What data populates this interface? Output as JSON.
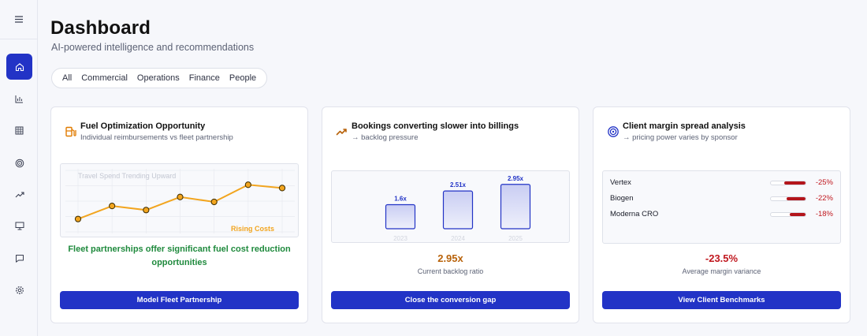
{
  "header": {
    "title": "Dashboard",
    "subtitle": "AI-powered intelligence and recommendations"
  },
  "sidebar": {
    "items": [
      {
        "icon": "home-icon",
        "active": true
      },
      {
        "icon": "bar-chart-icon",
        "active": false
      },
      {
        "icon": "table-icon",
        "active": false
      },
      {
        "icon": "target-icon",
        "active": false
      },
      {
        "icon": "trending-icon",
        "active": false
      },
      {
        "icon": "presentation-icon",
        "active": false
      },
      {
        "icon": "chat-icon",
        "active": false
      },
      {
        "icon": "settings-icon",
        "active": false
      }
    ]
  },
  "filters": [
    "All",
    "Commercial",
    "Operations",
    "Finance",
    "People"
  ],
  "cards": {
    "fuel": {
      "title": "Fuel Optimization Opportunity",
      "subtitle": "Individual reimbursements vs fleet partnership",
      "insight": "Fleet partnerships offer significant fuel cost reduction opportunities",
      "button": "Model Fleet Partnership",
      "accent": "#e07b00"
    },
    "bookings": {
      "title": "Bookings converting slower into billings",
      "subtitle": "→ backlog pressure",
      "metric": "2.95x",
      "metric_label": "Current backlog ratio",
      "button": "Close the conversion gap",
      "accent": "#b8620a"
    },
    "margin": {
      "title": "Client margin spread analysis",
      "subtitle": "→ pricing power varies by sponsor",
      "metric": "-23.5%",
      "metric_label": "Average margin variance",
      "button": "View Client Benchmarks",
      "accent": "#c0181f",
      "rows": [
        {
          "name": "Vertex",
          "pct": "-25%",
          "value": 25
        },
        {
          "name": "Biogen",
          "pct": "-22%",
          "value": 22
        },
        {
          "name": "Moderna CRO",
          "pct": "-18%",
          "value": 18
        }
      ]
    }
  },
  "chart_data": [
    {
      "type": "line",
      "title": "Travel Spend Trending Upward",
      "annotation": "Rising Costs",
      "x": [
        1,
        2,
        3,
        4,
        5,
        6,
        7
      ],
      "series": [
        {
          "values": [
            1.0,
            2.6,
            2.1,
            3.7,
            3.1,
            5.2,
            4.8
          ]
        }
      ],
      "ylim": [
        0,
        6
      ],
      "grid": true,
      "color": "#f2a51f"
    },
    {
      "type": "bar",
      "categories": [
        "2023",
        "2024",
        "2025"
      ],
      "values": [
        1.6,
        2.51,
        2.95
      ],
      "data_labels": [
        "1.6x",
        "2.51x",
        "2.95x"
      ],
      "ylim": [
        0,
        3.2
      ]
    }
  ]
}
